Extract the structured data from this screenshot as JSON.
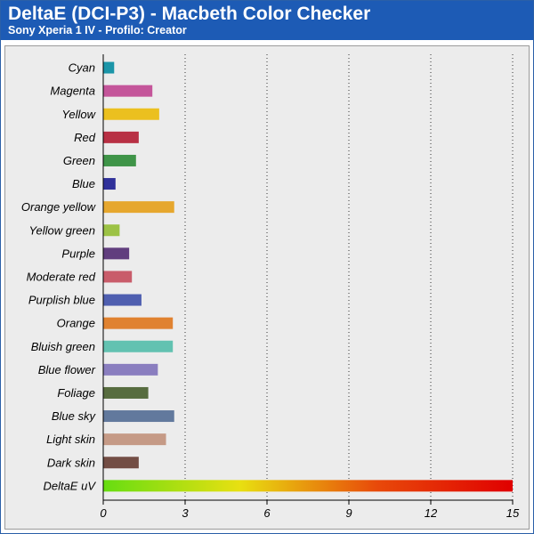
{
  "header": {
    "title": "DeltaE (DCI-P3) - Macbeth Color Checker",
    "subtitle": "Sony Xperia 1 IV - Profilo: Creator"
  },
  "chart_data": {
    "type": "bar",
    "orientation": "horizontal",
    "title": "DeltaE (DCI-P3) - Macbeth Color Checker",
    "subtitle": "Sony Xperia 1 IV - Profilo: Creator",
    "xlabel": "",
    "ylabel": "",
    "xlim": [
      0,
      15
    ],
    "xticks": [
      0,
      3,
      6,
      9,
      12,
      15
    ],
    "grid": "vertical dotted",
    "legend": "none",
    "categories": [
      "Cyan",
      "Magenta",
      "Yellow",
      "Red",
      "Green",
      "Blue",
      "Orange yellow",
      "Yellow green",
      "Purple",
      "Moderate red",
      "Purplish blue",
      "Orange",
      "Bluish green",
      "Blue flower",
      "Foliage",
      "Blue sky",
      "Light skin",
      "Dark skin",
      "DeltaE uV"
    ],
    "values": [
      0.4,
      1.8,
      2.05,
      1.3,
      1.2,
      0.45,
      2.6,
      0.6,
      0.95,
      1.05,
      1.4,
      2.55,
      2.55,
      2.0,
      1.65,
      2.6,
      2.3,
      1.3,
      15
    ],
    "colors": [
      "#1b95a8",
      "#c4559a",
      "#ebc01f",
      "#b83044",
      "#3f9448",
      "#30319a",
      "#e6a72e",
      "#9cc245",
      "#613e7e",
      "#c95c6a",
      "#4f5fb0",
      "#e08230",
      "#62c2b1",
      "#8a7ebf",
      "#576c3f",
      "#62799d",
      "#c59a86",
      "#734d44",
      "gradient"
    ],
    "gradient_colors": [
      "#66dd11",
      "#e8e011",
      "#e84a0a",
      "#e00000"
    ]
  }
}
